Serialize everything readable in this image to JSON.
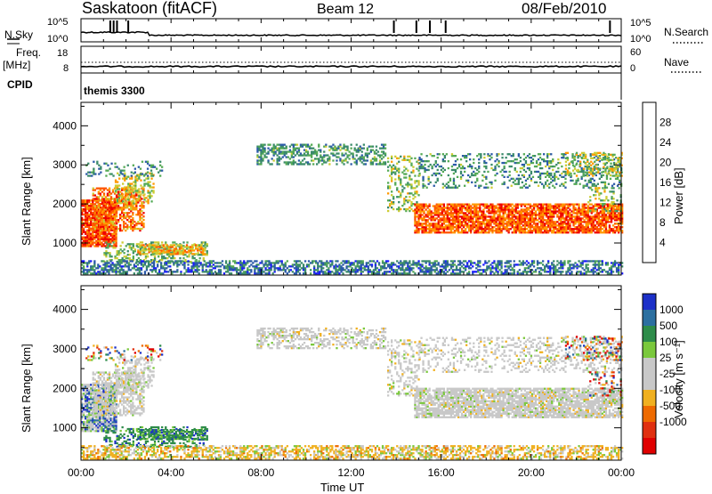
{
  "header": {
    "station": "Saskatoon (fitACF)",
    "beam": "Beam 12",
    "date": "08/Feb/2010"
  },
  "strips": {
    "nsky_label": "N.Sky",
    "nsky_top": "10^5",
    "nsky_bot": "10^0",
    "nsearch_label": "N.Search",
    "nsearch_top": "10^5",
    "nsearch_bot": "10^0",
    "freq_label_1": "Freq.",
    "freq_label_2": "[MHz]",
    "freq_top": "18",
    "freq_bot": "8",
    "nave_label": "Nave",
    "nave_top": "60",
    "nave_bot": "0",
    "cpid_label": "CPID",
    "cpid_value": "themis 3300"
  },
  "colors": {
    "power_scale": [
      "#1a1aff",
      "#2b5aa8",
      "#3a8a6a",
      "#55aa55",
      "#cccc33",
      "#ff9900",
      "#ff5500",
      "#ee0000"
    ],
    "velocity_scale": [
      "#1c30c8",
      "#2c6fa0",
      "#2e8c4a",
      "#7ac83c",
      "#c8c8c8",
      "#c8c8c8",
      "#f0b020",
      "#ee6a00",
      "#e03010",
      "#e00000"
    ]
  },
  "chart_data": [
    {
      "type": "heatmap",
      "name": "power",
      "xlabel": "",
      "ylabel": "Slant Range [km]",
      "x_ticks": [
        "00:00",
        "04:00",
        "08:00",
        "12:00",
        "16:00",
        "20:00",
        "00:00"
      ],
      "y_ticks": [
        "1000",
        "2000",
        "3000",
        "4000"
      ],
      "ylim": [
        180,
        4600
      ],
      "colorbar_label": "Power [dB]",
      "colorbar_ticks": [
        "4",
        "8",
        "12",
        "16",
        "20",
        "24",
        "28"
      ]
    },
    {
      "type": "heatmap",
      "name": "velocity",
      "xlabel": "Time UT",
      "ylabel": "Slant Range [km]",
      "x_ticks": [
        "00:00",
        "04:00",
        "08:00",
        "12:00",
        "16:00",
        "20:00",
        "00:00"
      ],
      "y_ticks": [
        "1000",
        "2000",
        "3000",
        "4000"
      ],
      "ylim": [
        180,
        4600
      ],
      "colorbar_label": "Velocity [m s⁻¹]",
      "colorbar_ticks": [
        "1000",
        "500",
        "100",
        "25",
        "-25",
        "-100",
        "-500",
        "-1000"
      ]
    }
  ]
}
